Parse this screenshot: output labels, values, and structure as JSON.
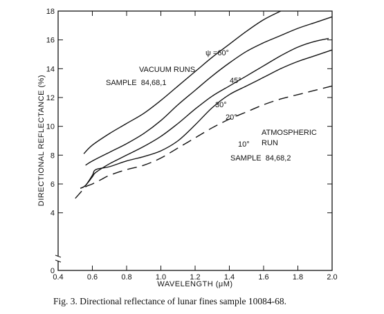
{
  "caption": "Fig. 3. Directional reflectance of lunar fines sample 10084-68.",
  "chart_data": {
    "type": "line",
    "xlabel": "WAVELENGTH (μM)",
    "ylabel": "DIRECTIONAL REFLECTANCE (%)",
    "xlim": [
      0.4,
      2.0
    ],
    "ylim": [
      0,
      18
    ],
    "x_ticks": [
      0.4,
      0.6,
      0.8,
      1.0,
      1.2,
      1.4,
      1.6,
      1.8,
      2.0
    ],
    "x_tick_labels": [
      "0.4",
      "0.6",
      "0.8",
      "1.0",
      "1.2",
      "1.4",
      "1.6",
      "1.8",
      "2.0"
    ],
    "y_ticks": [
      0,
      4,
      6,
      8,
      10,
      12,
      14,
      16,
      18
    ],
    "y_tick_labels": [
      "0",
      "4",
      "6",
      "8",
      "10",
      "12",
      "14",
      "16",
      "18"
    ],
    "y_axis_break": true,
    "grid": false,
    "annotations": {
      "vacuum_title": "VACUUM RUNS",
      "vacuum_sample": "SAMPLE  84,68,1",
      "atm_title_1": "ATMOSPHERIC",
      "atm_title_2": "RUN",
      "atm_sample": "SAMPLE  84,68,2",
      "label_60": "ψ =60°",
      "label_45": "45°",
      "label_30": "30°",
      "label_20": "20°",
      "label_10": "10°"
    },
    "series": [
      {
        "name": "ψ =60°",
        "dash": "solid",
        "x": [
          0.55,
          0.6,
          0.7,
          0.8,
          0.9,
          1.0,
          1.1,
          1.2,
          1.3,
          1.4,
          1.5,
          1.6,
          1.7
        ],
        "y": [
          8.1,
          8.7,
          9.5,
          10.2,
          10.9,
          11.8,
          12.8,
          13.8,
          14.8,
          15.7,
          16.6,
          17.4,
          18.0
        ]
      },
      {
        "name": "45°",
        "dash": "solid",
        "x": [
          0.56,
          0.6,
          0.7,
          0.8,
          0.9,
          1.0,
          1.1,
          1.2,
          1.3,
          1.4,
          1.5,
          1.6,
          1.7,
          1.8,
          1.9,
          2.0
        ],
        "y": [
          7.3,
          7.6,
          8.2,
          8.8,
          9.5,
          10.4,
          11.5,
          12.5,
          13.5,
          14.4,
          15.2,
          15.8,
          16.3,
          16.8,
          17.2,
          17.6
        ]
      },
      {
        "name": "30°",
        "dash": "solid",
        "x": [
          0.53,
          0.56,
          0.6,
          0.62,
          0.7,
          0.8,
          0.9,
          1.0,
          1.1,
          1.2,
          1.3,
          1.4,
          1.5,
          1.6,
          1.7,
          1.8,
          1.9,
          1.98
        ],
        "y": [
          5.7,
          5.9,
          6.5,
          6.8,
          7.4,
          8.0,
          8.6,
          9.3,
          10.2,
          11.2,
          12.1,
          12.8,
          13.5,
          14.2,
          14.9,
          15.5,
          15.9,
          16.1
        ]
      },
      {
        "name": "20°",
        "dash": "solid",
        "x": [
          0.53,
          0.56,
          0.6,
          0.62,
          0.7,
          0.8,
          0.9,
          1.0,
          1.1,
          1.2,
          1.3,
          1.4,
          1.5,
          1.6,
          1.7,
          1.8,
          1.9,
          2.0
        ],
        "y": [
          5.7,
          5.9,
          6.6,
          7.0,
          7.2,
          7.6,
          7.9,
          8.3,
          9.0,
          10.1,
          11.3,
          12.2,
          12.8,
          13.4,
          14.0,
          14.5,
          14.9,
          15.3
        ]
      },
      {
        "name": "10°",
        "dash": "dashed",
        "x": [
          0.5,
          0.53,
          0.56,
          0.6,
          0.65,
          0.7,
          0.8,
          0.9,
          1.0,
          1.1,
          1.2,
          1.3,
          1.4,
          1.5,
          1.6,
          1.7,
          1.8,
          1.9,
          2.0
        ],
        "y": [
          5.0,
          5.4,
          5.8,
          6.0,
          6.3,
          6.6,
          7.0,
          7.3,
          7.8,
          8.5,
          9.2,
          9.9,
          10.5,
          11.0,
          11.5,
          11.9,
          12.2,
          12.5,
          12.8
        ]
      }
    ]
  }
}
